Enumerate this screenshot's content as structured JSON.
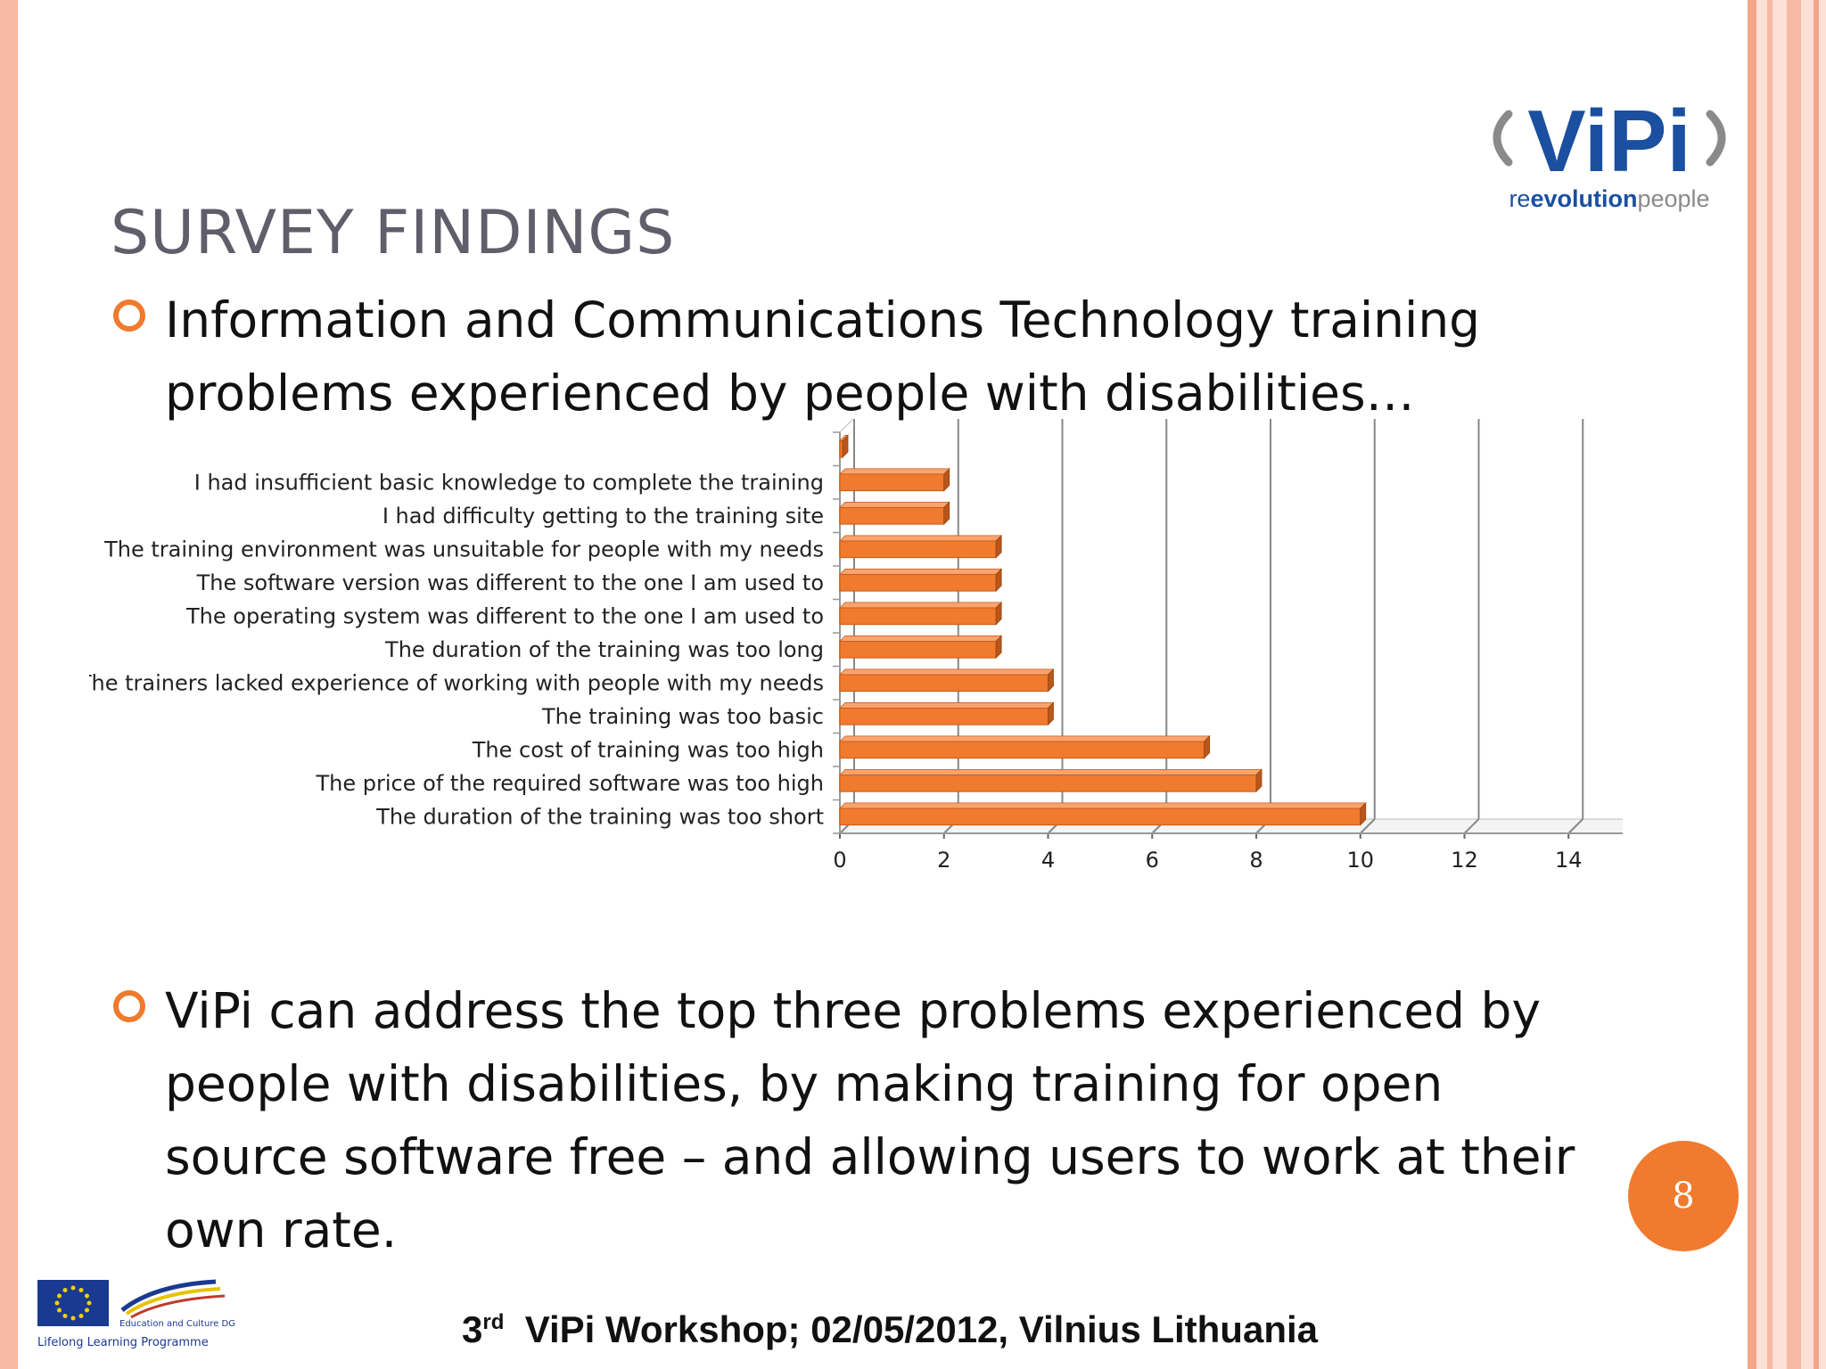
{
  "slide": {
    "title": "SURVEY FINDINGS",
    "bullet1_line1": "Information and Communications Technology training",
    "bullet1_line2": "problems experienced by people with disabilities…",
    "bullet2_line1": "ViPi can address the top three problems experienced by",
    "bullet2_line2": "people with disabilities, by making training for open",
    "bullet2_line3": "source software free – and allowing users to work at their",
    "bullet2_line4": "own rate.",
    "page_number": "8",
    "footer_ord": "3",
    "footer_sup": "rd",
    "footer_text": "ViPi Workshop; 02/05/2012, Vilnius Lithuania"
  },
  "logo": {
    "main": "ViPi",
    "left_part": "re",
    "mid_part": "evolution",
    "right_part": "people"
  },
  "eu_logo": {
    "text1": "Education and Culture DG",
    "text2": "Lifelong Learning Programme"
  },
  "colors": {
    "accent": "#f07a2d",
    "bar": "#f07a2d",
    "title": "#5f5f6b",
    "logo_blue": "#1b4fa0"
  },
  "chart_data": {
    "type": "bar",
    "orientation": "horizontal",
    "categories": [
      "",
      "I had insufficient basic knowledge to complete the training",
      "I had difficulty getting to the training site",
      "The training environment was unsuitable for people with my needs",
      "The software version was different to the one I am used to",
      "The operating system was different to the one I am used to",
      "The duration of the training was too long",
      "The trainers lacked experience of working with people with my needs",
      "The training was too basic",
      "The cost of training was too high",
      "The price of the required software was too high",
      "The duration of the training was too short"
    ],
    "values": [
      0,
      2,
      2,
      3,
      3,
      3,
      3,
      4,
      4,
      7,
      8,
      10
    ],
    "xlim": [
      0,
      16
    ],
    "xticks": [
      "0",
      "2",
      "4",
      "6",
      "8",
      "10",
      "12",
      "14",
      "16"
    ],
    "grid": true,
    "legend": false
  }
}
